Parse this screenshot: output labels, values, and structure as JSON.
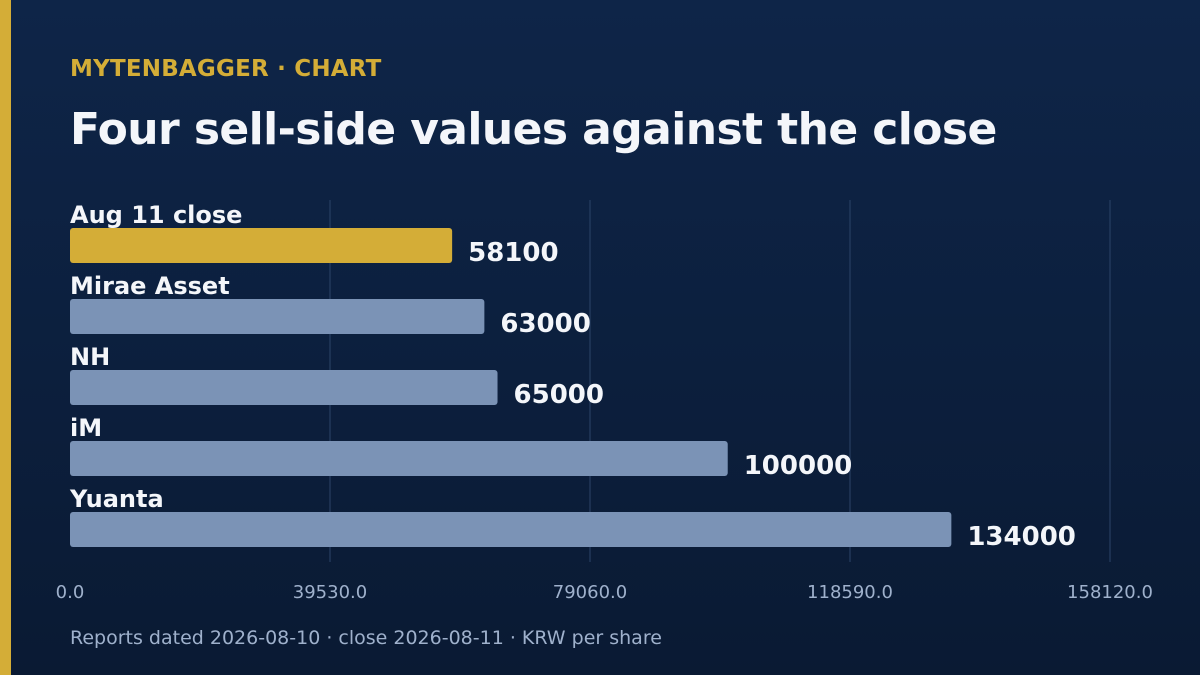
{
  "header": {
    "brand": "MYTENBAGGER · CHART",
    "title": "Four sell-side values against the close"
  },
  "footer": {
    "note": "Reports dated 2026-08-10 · close 2026-08-11 · KRW per share"
  },
  "colors": {
    "accent": "#d4ad37",
    "bar": "#7b93b6",
    "highlight_bar": "#d4ad37",
    "grid": "#2c4468",
    "value_label": "#f4f6fa",
    "tick_label": "#9fb1cc"
  },
  "chart_data": {
    "type": "bar",
    "orientation": "horizontal",
    "categories": [
      "Aug 11 close",
      "Mirae Asset",
      "NH",
      "iM",
      "Yuanta"
    ],
    "values": [
      58100,
      63000,
      65000,
      100000,
      134000
    ],
    "highlight": "Aug 11 close",
    "xlim": [
      0,
      158120
    ],
    "xticks": [
      0,
      39530,
      79060,
      118590,
      158120
    ],
    "xtick_labels": [
      "0.0",
      "39530.0",
      "79060.0",
      "118590.0",
      "158120.0"
    ],
    "value_labels": [
      "58100",
      "63000",
      "65000",
      "100000",
      "134000"
    ],
    "grid": "vertical",
    "legend": "none"
  }
}
